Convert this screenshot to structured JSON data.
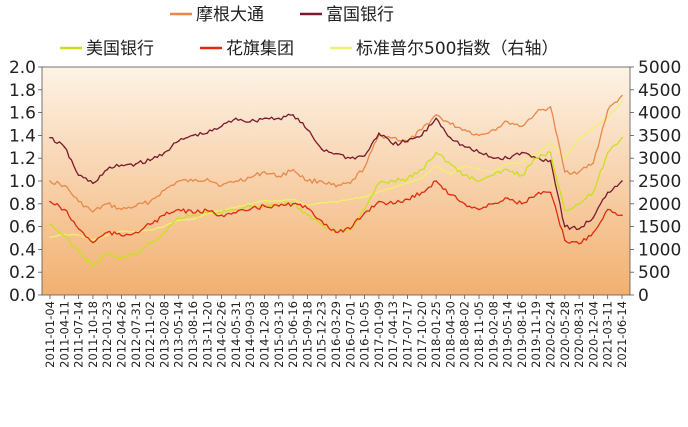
{
  "chart_data": {
    "type": "line",
    "title": "",
    "xlabel": "",
    "ylabel": "",
    "y_left_lim": [
      0.0,
      2.0
    ],
    "y_right_lim": [
      0,
      5000
    ],
    "y_left_ticks": [
      "2.0",
      "1.8",
      "1.6",
      "1.4",
      "1.2",
      "1.0",
      "0.8",
      "0.6",
      "0.4",
      "0.2",
      "0.0"
    ],
    "y_right_ticks": [
      "5000",
      "4500",
      "4000",
      "3500",
      "3000",
      "2500",
      "2000",
      "1500",
      "1000",
      "500",
      "0"
    ],
    "x_ticks": [
      "2011-01-04",
      "2011-04-11",
      "2011-07-14",
      "2011-10-18",
      "2012-01-23",
      "2012-04-26",
      "2012-07-31",
      "2012-11-02",
      "2013-02-08",
      "2013-05-14",
      "2013-08-16",
      "2013-11-20",
      "2014-02-26",
      "2014-05-31",
      "2014-09-03",
      "2014-12-08",
      "2015-03-13",
      "2015-06-16",
      "2015-09-18",
      "2015-12-23",
      "2016-03-29",
      "2016-07-01",
      "2016-10-05",
      "2017-01-09",
      "2017-04-13",
      "2017-07-17",
      "2017-10-20",
      "2018-01-25",
      "2018-04-30",
      "2018-08-02",
      "2018-11-05",
      "2019-02-08",
      "2019-05-14",
      "2019-08-16",
      "2019-11-19",
      "2020-02-24",
      "2020-05-28",
      "2020-08-31",
      "2020-12-04",
      "2021-03-11",
      "2021-06-14"
    ],
    "legend": [
      {
        "name": "摩根大通",
        "color": "#e8884a"
      },
      {
        "name": "富国银行",
        "color": "#7a1a2e"
      },
      {
        "name": "美国银行",
        "color": "#c8e020"
      },
      {
        "name": "花旗集团",
        "color": "#e02a10"
      },
      {
        "name": "标准普尔500指数（右轴）",
        "color": "#f0f070"
      }
    ],
    "legend_placement": "top",
    "background_gradient": [
      "#fdf3e6",
      "#f2b070"
    ],
    "series": [
      {
        "name": "摩根大通",
        "axis": "left",
        "color": "#e8884a",
        "values": [
          1.0,
          0.96,
          0.82,
          0.73,
          0.8,
          0.75,
          0.78,
          0.82,
          0.92,
          1.0,
          1.0,
          1.02,
          0.96,
          1.0,
          1.03,
          1.08,
          1.04,
          1.1,
          1.0,
          1.0,
          0.95,
          0.98,
          1.12,
          1.4,
          1.38,
          1.34,
          1.45,
          1.58,
          1.5,
          1.45,
          1.4,
          1.45,
          1.52,
          1.48,
          1.6,
          1.65,
          1.08,
          1.08,
          1.16,
          1.62,
          1.75
        ]
      },
      {
        "name": "富国银行",
        "axis": "left",
        "color": "#7a1a2e",
        "values": [
          1.38,
          1.3,
          1.05,
          0.98,
          1.1,
          1.14,
          1.15,
          1.18,
          1.25,
          1.35,
          1.4,
          1.42,
          1.48,
          1.55,
          1.52,
          1.55,
          1.55,
          1.58,
          1.45,
          1.28,
          1.24,
          1.2,
          1.22,
          1.42,
          1.32,
          1.35,
          1.4,
          1.55,
          1.38,
          1.3,
          1.25,
          1.2,
          1.2,
          1.25,
          1.2,
          1.18,
          0.6,
          0.58,
          0.68,
          0.9,
          1.0
        ]
      },
      {
        "name": "美国银行",
        "axis": "left",
        "color": "#c8e020",
        "values": [
          0.62,
          0.52,
          0.38,
          0.26,
          0.36,
          0.32,
          0.36,
          0.45,
          0.55,
          0.68,
          0.7,
          0.72,
          0.72,
          0.75,
          0.78,
          0.78,
          0.78,
          0.8,
          0.7,
          0.62,
          0.55,
          0.58,
          0.75,
          0.98,
          1.0,
          1.02,
          1.1,
          1.25,
          1.15,
          1.05,
          1.0,
          1.05,
          1.1,
          1.05,
          1.2,
          1.25,
          0.75,
          0.8,
          0.9,
          1.25,
          1.38
        ]
      },
      {
        "name": "花旗集团",
        "axis": "left",
        "color": "#e02a10",
        "values": [
          0.82,
          0.75,
          0.58,
          0.46,
          0.55,
          0.52,
          0.55,
          0.62,
          0.7,
          0.75,
          0.72,
          0.74,
          0.7,
          0.72,
          0.75,
          0.78,
          0.78,
          0.8,
          0.76,
          0.65,
          0.55,
          0.58,
          0.72,
          0.82,
          0.8,
          0.84,
          0.9,
          1.0,
          0.88,
          0.8,
          0.75,
          0.8,
          0.85,
          0.8,
          0.88,
          0.9,
          0.48,
          0.45,
          0.55,
          0.75,
          0.7
        ]
      },
      {
        "name": "标准普尔500指数（右轴）",
        "axis": "right",
        "color": "#f0f070",
        "values": [
          1270,
          1330,
          1320,
          1200,
          1310,
          1400,
          1380,
          1420,
          1510,
          1640,
          1660,
          1790,
          1850,
          1920,
          2000,
          2070,
          2060,
          2100,
          1960,
          2030,
          2040,
          2100,
          2150,
          2270,
          2350,
          2460,
          2560,
          2840,
          2650,
          2830,
          2750,
          2700,
          2880,
          2900,
          3100,
          3350,
          3000,
          3450,
          3660,
          3900,
          4250
        ]
      }
    ]
  }
}
